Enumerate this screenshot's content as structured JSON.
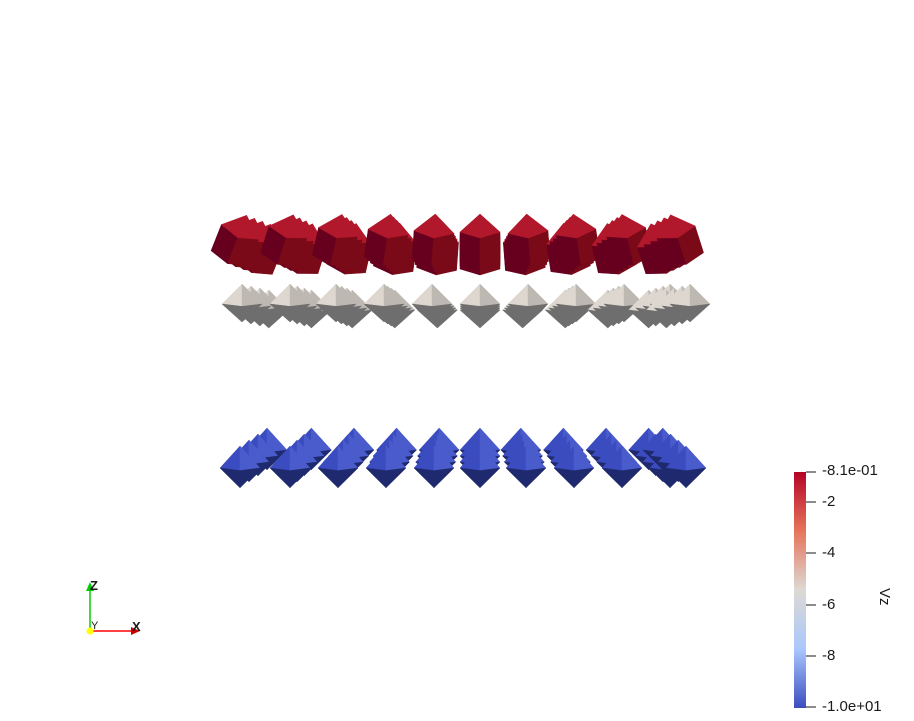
{
  "scene": {
    "layers": [
      {
        "name": "top-layer",
        "color_top": "#b2182b",
        "color_dark": "#67001f",
        "color_light": "#c9303a"
      },
      {
        "name": "middle-layer",
        "color_top": "#ddd7d0",
        "color_dark": "#6e6e6e",
        "color_light": "#c8c2bb"
      },
      {
        "name": "bottom-layer",
        "color_top": "#3b4cc0",
        "color_dark": "#1f2a6e",
        "color_light": "#4a5ccc"
      }
    ]
  },
  "colorbar": {
    "title": "Vz",
    "tick_labels": [
      "-8.1e-01",
      "-2",
      "-4",
      "-6",
      "-8",
      "-1.0e+01"
    ],
    "tick_values": [
      -0.81,
      -2,
      -4,
      -6,
      -8,
      -10
    ],
    "range": [
      -10,
      -0.81
    ],
    "colormap": "Cool to Warm",
    "colors": [
      "#b40426",
      "#e7745b",
      "#ddd9d4",
      "#aac7fd",
      "#3b4cc0"
    ]
  },
  "orientation_axes": {
    "x_label": "X",
    "y_label": "Y",
    "z_label": "Z",
    "x_color": "#ff0000",
    "y_color": "#ffff00",
    "z_color": "#00ff00"
  }
}
